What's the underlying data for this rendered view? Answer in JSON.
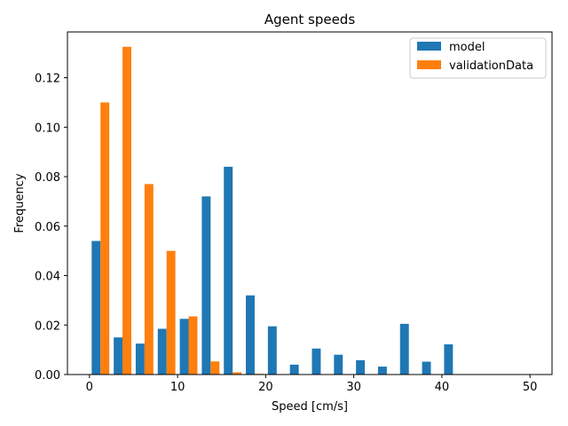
{
  "chart_data": {
    "type": "bar",
    "title": "Agent speeds",
    "xlabel": "Speed [cm/s]",
    "ylabel": "Frequency",
    "xlim": [
      -2.5,
      52.5
    ],
    "ylim": [
      0,
      0.1385
    ],
    "x_ticks": [
      0,
      10,
      20,
      30,
      40,
      50
    ],
    "y_ticks": [
      0.0,
      0.02,
      0.04,
      0.06,
      0.08,
      0.1,
      0.12
    ],
    "y_tick_labels": [
      "0.00",
      "0.02",
      "0.04",
      "0.06",
      "0.08",
      "0.10",
      "0.12"
    ],
    "bin_edges": [
      0,
      2.5,
      5,
      7.5,
      10,
      12.5,
      15,
      17.5,
      20,
      22.5,
      25,
      27.5,
      30,
      32.5,
      35,
      37.5,
      40,
      42.5,
      45,
      47.5,
      50
    ],
    "grid": false,
    "legend_position": "top-right",
    "series": [
      {
        "name": "model",
        "color": "#1f77b4",
        "values": [
          0.054,
          0.015,
          0.0125,
          0.0185,
          0.0225,
          0.072,
          0.084,
          0.032,
          0.0195,
          0.004,
          0.0105,
          0.008,
          0.0058,
          0.0032,
          0.0205,
          0.0052,
          0.0122,
          0,
          0,
          0
        ]
      },
      {
        "name": "validationData",
        "color": "#ff7f0e",
        "values": [
          0.11,
          0.1325,
          0.077,
          0.05,
          0.0235,
          0.0053,
          0.0009,
          0.0003,
          0,
          0,
          0,
          0,
          0,
          0,
          0,
          0,
          0,
          0,
          0,
          0
        ]
      }
    ]
  }
}
